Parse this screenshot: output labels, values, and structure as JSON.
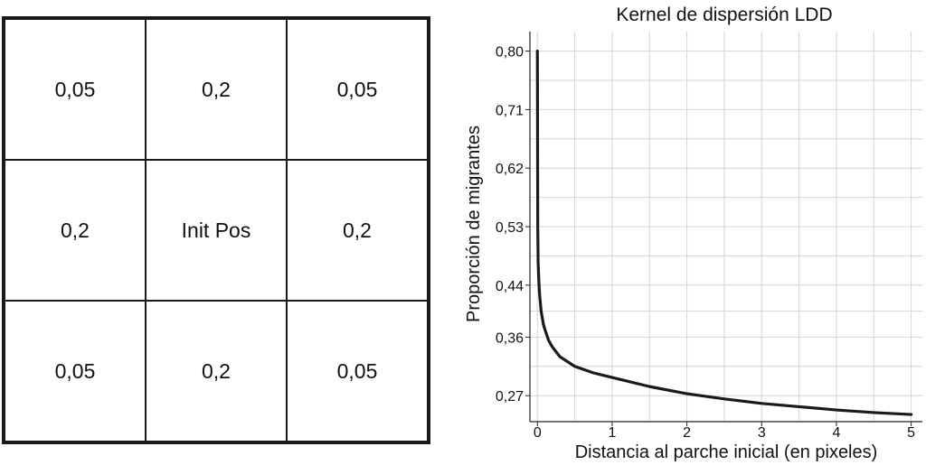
{
  "grid": {
    "cells": [
      "0,05",
      "0,2",
      "0,05",
      "0,2",
      "Init Pos",
      "0,2",
      "0,05",
      "0,2",
      "0,05"
    ]
  },
  "chart_data": {
    "type": "line",
    "title": "Kernel de dispersión LDD",
    "xlabel": "Distancia al parche inicial (en pixeles)",
    "ylabel": "Proporción de migrantes",
    "xlim": [
      -0.1,
      5.15
    ],
    "ylim": [
      0.23,
      0.83
    ],
    "x_ticks": [
      0,
      1,
      2,
      3,
      4,
      5
    ],
    "x_tick_labels": [
      "0",
      "1",
      "2",
      "3",
      "4",
      "5"
    ],
    "y_ticks": [
      0.27,
      0.36,
      0.44,
      0.53,
      0.62,
      0.71,
      0.8
    ],
    "y_tick_labels": [
      "0,27",
      "0,36",
      "0,44",
      "0,53",
      "0,62",
      "0,71",
      "0,80"
    ],
    "grid": true,
    "series": [
      {
        "color": "#1a1a1a",
        "x": [
          0,
          0.005,
          0.01,
          0.02,
          0.03,
          0.05,
          0.08,
          0.1,
          0.15,
          0.2,
          0.3,
          0.5,
          0.75,
          1,
          1.5,
          2,
          2.5,
          3,
          3.5,
          4,
          4.5,
          5
        ],
        "y": [
          0.8,
          0.53,
          0.475,
          0.445,
          0.425,
          0.4,
          0.38,
          0.372,
          0.355,
          0.345,
          0.33,
          0.315,
          0.305,
          0.298,
          0.284,
          0.273,
          0.265,
          0.258,
          0.253,
          0.248,
          0.244,
          0.241
        ]
      }
    ]
  }
}
